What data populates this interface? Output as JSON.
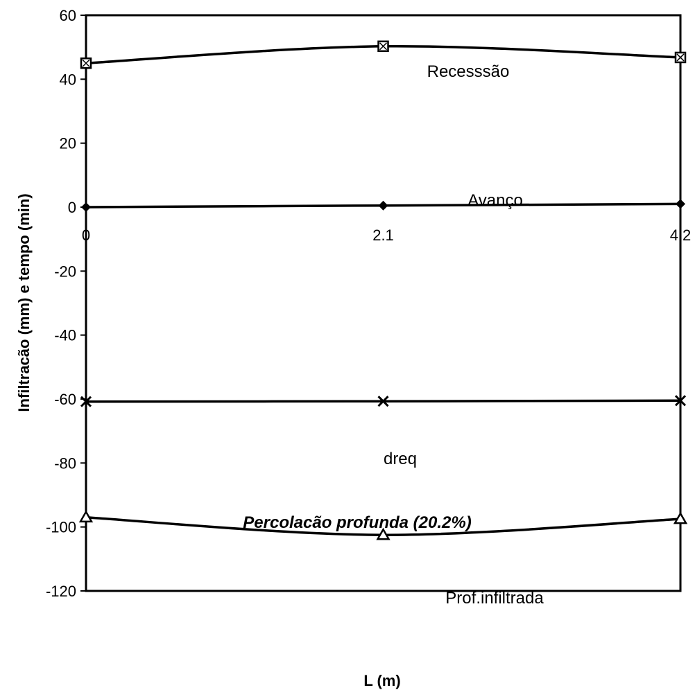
{
  "chart_data": {
    "type": "line",
    "title": "",
    "xlabel": "L (m)",
    "ylabel": "Infiltracão (mm) e tempo (min)",
    "x": [
      0,
      2.1,
      4.2
    ],
    "x_tick_labels": [
      "0",
      "2.1",
      "4.2"
    ],
    "xlim": [
      0,
      4.2
    ],
    "ylim": [
      -120,
      60
    ],
    "y_ticks": [
      60,
      40,
      20,
      0,
      -20,
      -40,
      -60,
      -80,
      -100,
      -120
    ],
    "grid": false,
    "legend": "none",
    "series": [
      {
        "name": "Recesssão",
        "values": [
          45,
          50.3,
          46.8
        ],
        "marker": "square-x",
        "color": "#000000"
      },
      {
        "name": "Avanço",
        "values": [
          0,
          0.5,
          1
        ],
        "marker": "diamond",
        "color": "#000000"
      },
      {
        "name": "dreq",
        "values": [
          -60.8,
          -60.7,
          -60.5
        ],
        "marker": "x",
        "color": "#000000"
      },
      {
        "name": "Prof.infiltrada",
        "values": [
          -97,
          -102.5,
          -97.5
        ],
        "marker": "triangle",
        "color": "#000000"
      }
    ],
    "annotations": [
      {
        "text": "Percolacão profunda (20.2%)"
      }
    ]
  }
}
